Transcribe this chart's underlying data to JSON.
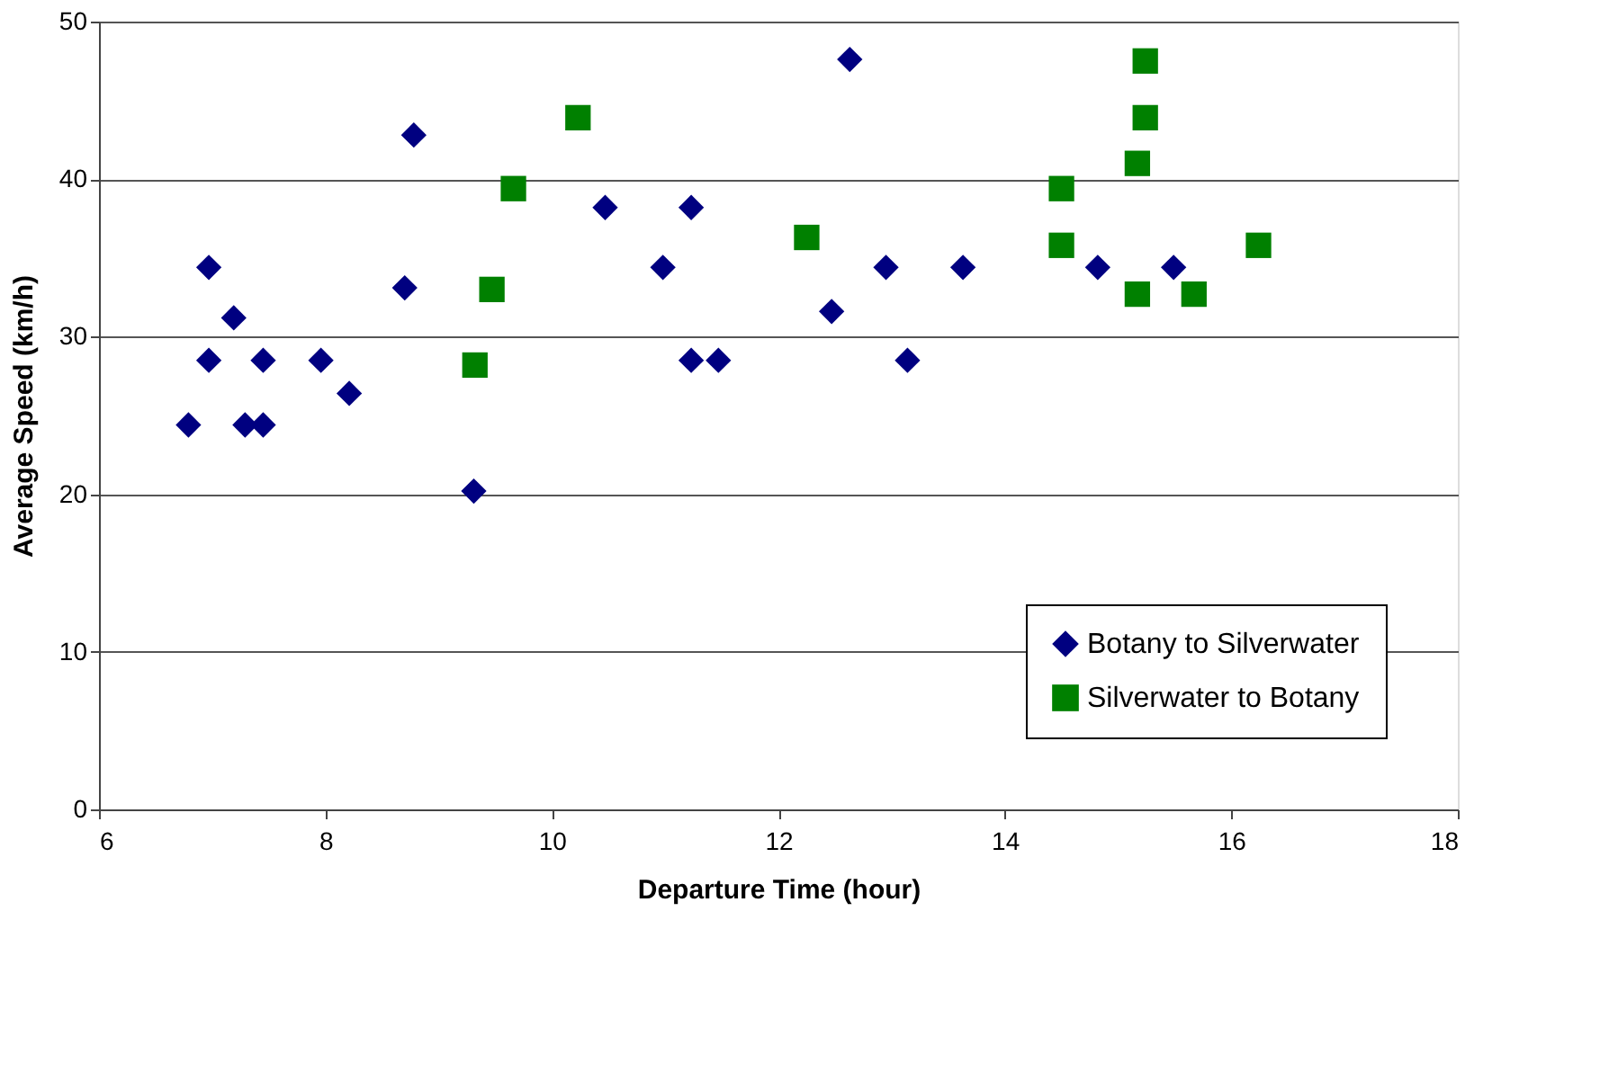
{
  "chart_data": {
    "type": "scatter",
    "xlabel": "Departure Time (hour)",
    "ylabel": "Average Speed (km/h)",
    "xlim": [
      6,
      18
    ],
    "xticks": [
      6,
      8,
      10,
      12,
      14,
      16,
      18
    ],
    "ylim": [
      0,
      50
    ],
    "yticks": [
      0,
      10,
      20,
      30,
      40,
      50
    ],
    "grid": "y",
    "legend": "bottom right",
    "series": [
      {
        "name": "Botany to Silverwater",
        "color": "#000080",
        "marker": "diamond",
        "x": [
          6.79,
          6.97,
          6.97,
          7.19,
          7.29,
          7.45,
          7.45,
          7.96,
          8.21,
          8.7,
          8.78,
          9.31,
          10.47,
          10.98,
          11.23,
          11.23,
          11.47,
          12.63,
          12.47,
          12.95,
          13.14,
          13.63,
          14.82,
          15.49
        ],
        "values": [
          24.4,
          34.4,
          28.5,
          31.2,
          24.4,
          24.4,
          28.5,
          28.5,
          26.4,
          33.1,
          42.8,
          20.2,
          38.2,
          34.4,
          38.2,
          28.5,
          28.5,
          47.6,
          31.6,
          34.4,
          28.5,
          34.4,
          34.4,
          34.4
        ]
      },
      {
        "name": "Silverwater to Botany",
        "color": "#008000",
        "marker": "square",
        "x": [
          9.32,
          9.47,
          9.66,
          10.23,
          12.25,
          14.5,
          14.5,
          15.17,
          15.24,
          15.24,
          15.17,
          15.67,
          16.24
        ],
        "values": [
          28.2,
          33.0,
          39.4,
          43.9,
          36.3,
          39.4,
          35.8,
          41.0,
          43.9,
          47.5,
          32.7,
          32.7,
          35.8
        ]
      }
    ]
  }
}
